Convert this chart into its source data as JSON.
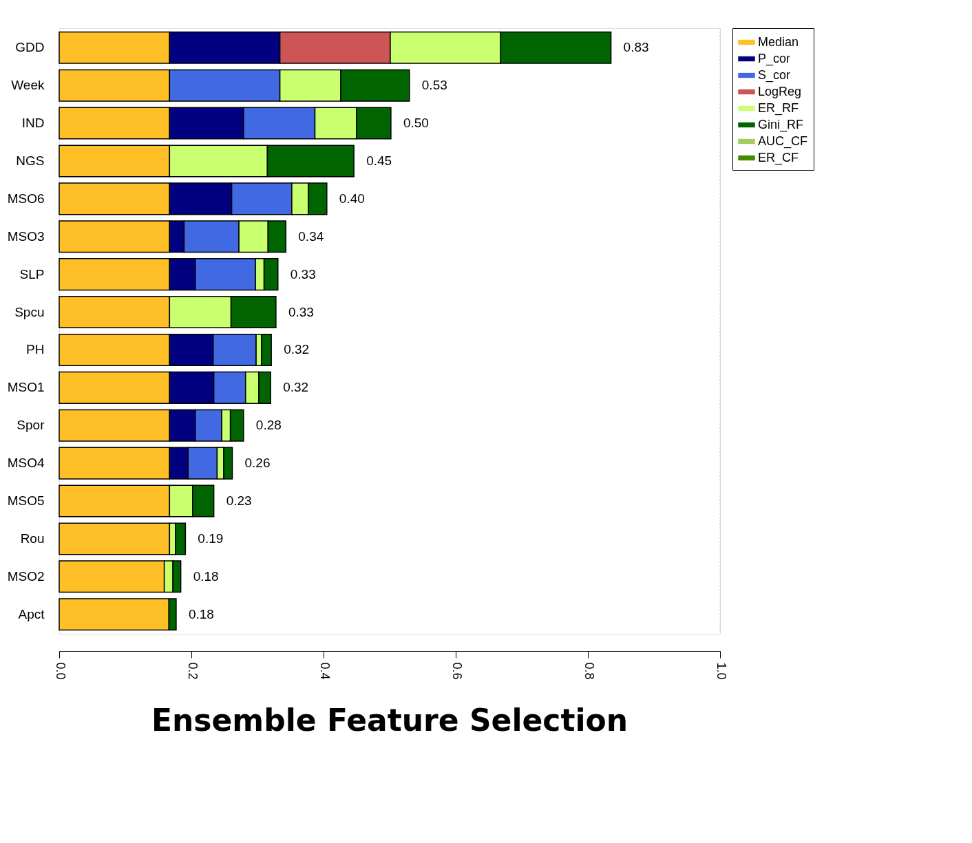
{
  "chart_data": {
    "type": "bar",
    "orientation": "horizontal",
    "stacked": true,
    "title": "Ensemble Feature Selection",
    "categories": [
      "GDD",
      "Week",
      "IND",
      "NGS",
      "MSO6",
      "MSO3",
      "SLP",
      "Spcu",
      "PH",
      "MSO1",
      "Spor",
      "MSO4",
      "MSO5",
      "Rou",
      "MSO2",
      "Apct"
    ],
    "series": [
      {
        "name": "Median",
        "color": "#ffbf27",
        "values": [
          0.167,
          0.167,
          0.167,
          0.167,
          0.167,
          0.167,
          0.167,
          0.167,
          0.167,
          0.167,
          0.167,
          0.167,
          0.167,
          0.167,
          0.159,
          0.166
        ]
      },
      {
        "name": "P_cor",
        "color": "#000080",
        "values": [
          0.167,
          null,
          0.112,
          null,
          0.094,
          0.022,
          0.039,
          null,
          0.066,
          0.067,
          0.039,
          0.028,
          null,
          null,
          null,
          null
        ]
      },
      {
        "name": "S_cor",
        "color": "#4169e1",
        "values": [
          null,
          0.167,
          0.108,
          null,
          0.091,
          0.083,
          0.091,
          null,
          0.065,
          0.048,
          0.04,
          0.044,
          null,
          null,
          null,
          null
        ]
      },
      {
        "name": "LogReg",
        "color": "#cd5555",
        "values": [
          0.167,
          null,
          null,
          null,
          null,
          null,
          null,
          null,
          null,
          null,
          null,
          null,
          null,
          null,
          null,
          null
        ]
      },
      {
        "name": "ER_RF",
        "color": "#caff70",
        "values": [
          0.167,
          0.092,
          0.063,
          0.148,
          0.025,
          0.044,
          0.013,
          0.093,
          0.008,
          0.02,
          0.013,
          0.01,
          0.035,
          0.009,
          0.013,
          null
        ]
      },
      {
        "name": "Gini_RF",
        "color": "#006400",
        "values": [
          0.167,
          0.104,
          0.052,
          0.131,
          0.028,
          0.027,
          0.021,
          0.068,
          0.015,
          0.018,
          0.02,
          0.013,
          0.032,
          0.015,
          0.012,
          0.011
        ]
      },
      {
        "name": "AUC_CF",
        "color": "#a2cd5a",
        "values": [
          null,
          null,
          null,
          null,
          null,
          null,
          null,
          null,
          null,
          null,
          null,
          null,
          null,
          null,
          null,
          null
        ]
      },
      {
        "name": "ER_CF",
        "color": "#458b00",
        "values": [
          null,
          null,
          null,
          null,
          null,
          null,
          null,
          null,
          null,
          null,
          null,
          null,
          null,
          null,
          null,
          null
        ]
      }
    ],
    "totals": [
      "0.83",
      "0.53",
      "0.50",
      "0.45",
      "0.40",
      "0.34",
      "0.33",
      "0.33",
      "0.32",
      "0.32",
      "0.28",
      "0.26",
      "0.23",
      "0.19",
      "0.18",
      "0.18"
    ],
    "xlim": [
      0.0,
      1.0
    ],
    "xticks": [
      {
        "value": 0,
        "label": "0.0"
      },
      {
        "value": 0.2,
        "label": "0.2"
      },
      {
        "value": 0.4,
        "label": "0.4"
      },
      {
        "value": 0.6,
        "label": "0.6"
      },
      {
        "value": 0.8,
        "label": "0.8"
      },
      {
        "value": 1.0,
        "label": "1.0"
      }
    ],
    "ref_lines": [
      {
        "axis": "x",
        "value": 1.0,
        "color": "#bbbbbb",
        "line_style": "dotted"
      }
    ],
    "legend": "top right",
    "grid": false
  }
}
